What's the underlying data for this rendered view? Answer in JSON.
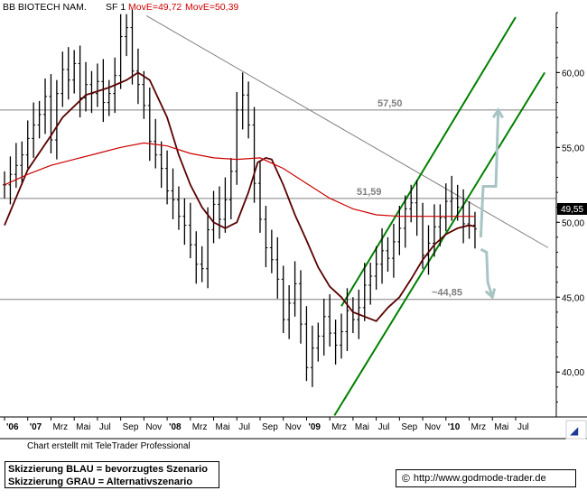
{
  "header": {
    "instrument": "BB BIOTECH NAM.",
    "sf_label": "SF 1",
    "move1": "MovE=49,72",
    "move2": "MovE=50,39"
  },
  "price_tag": "49,55",
  "footer": {
    "credit": "Chart erstellt mit TeleTrader Professional",
    "legend_line1": "Skizzierung BLAU = bevorzugtes Szenario",
    "legend_line2": "Skizzierung GRAU = Alternativszenario",
    "copyright_symbol": "©",
    "source": "http://www.godmode-trader.de"
  },
  "colors": {
    "price_bars": "#000000",
    "ma_short": "#5a0000",
    "ma_long": "#cc0000",
    "channel": "#008000",
    "levels": "#808080",
    "scenario_arrows": "#a9c4c4",
    "header_red": "#d00000"
  },
  "chart_data": {
    "type": "line",
    "series_kind": "ohlc-bars",
    "ylim": [
      37,
      64
    ],
    "yticks": [
      40,
      45,
      50,
      55,
      60
    ],
    "ytick_labels": [
      "40,00",
      "45,00",
      "50,00",
      "55,00",
      "60,00"
    ],
    "x_labels": [
      "'06",
      "'07",
      "Mrz",
      "Mai",
      "Jul",
      "Sep",
      "Nov",
      "'08",
      "Mrz",
      "Mai",
      "Jul",
      "Sep",
      "Nov",
      "'09",
      "Mrz",
      "Mai",
      "Jul",
      "Sep",
      "Nov",
      "'10",
      "Mrz",
      "Mai",
      "Jul"
    ],
    "x_label_positions": [
      0,
      2,
      4,
      6,
      8,
      10,
      12,
      14,
      16,
      18,
      20,
      22,
      24,
      26,
      28,
      30,
      32,
      34,
      36,
      38,
      40,
      42,
      44
    ],
    "x_range": [
      0,
      47.5
    ],
    "series": [
      {
        "kind": "price",
        "x": [
          0,
          0.5,
          1,
          1.5,
          2,
          2.5,
          3,
          3.5,
          4,
          4.5,
          5,
          5.5,
          6,
          6.5,
          7,
          7.5,
          8,
          8.5,
          9,
          9.5,
          10,
          10.5,
          11,
          11.5,
          12,
          12.5,
          13,
          13.5,
          14,
          14.5,
          15,
          15.5,
          16,
          16.5,
          17,
          17.5,
          18,
          18.5,
          19,
          19.5,
          20,
          20.5,
          21,
          21.5,
          22,
          22.5,
          23,
          23.5,
          24,
          24.5,
          25,
          25.5,
          26,
          26.5,
          27,
          27.5,
          28,
          28.5,
          29,
          29.5,
          30,
          30.5,
          31,
          31.5,
          32,
          32.5,
          33,
          33.5,
          34,
          34.5,
          35,
          35.5,
          36,
          36.5,
          37,
          37.5,
          38,
          38.5,
          39,
          39.5,
          40,
          40.5
        ],
        "y": [
          52.5,
          53.2,
          53.8,
          54.5,
          55.6,
          56.5,
          57.2,
          58.4,
          55.5,
          58.6,
          60.2,
          59.5,
          60.6,
          58.3,
          59.2,
          58.6,
          59.4,
          58.0,
          58.6,
          59.8,
          62.4,
          63.0,
          60.1,
          59.2,
          57.8,
          55.4,
          54.5,
          53.6,
          52.1,
          51.5,
          50.4,
          49.8,
          48.5,
          47.2,
          46.9,
          49.5,
          51.2,
          50.2,
          51.5,
          53.4,
          57.5,
          58.5,
          56.5,
          52.6,
          50.2,
          48.3,
          47.5,
          46.2,
          43.5,
          44.6,
          45.9,
          43.2,
          40.3,
          41.6,
          42.4,
          43.7,
          42.6,
          41.8,
          42.7,
          44.1,
          43.5,
          44.3,
          45.8,
          46.4,
          47.2,
          48.1,
          47.6,
          48.7,
          49.6,
          50.9,
          51.3,
          50.4,
          47.8,
          48.6,
          49.7,
          50.3,
          51.4,
          51.6,
          51.0,
          49.9,
          49.8,
          49.55
        ]
      },
      {
        "name": "MovE=49,72",
        "kind": "ma-short",
        "x": [
          0,
          2,
          4,
          5,
          7,
          9,
          10.5,
          11.5,
          12.5,
          14,
          15,
          16,
          17,
          18,
          19,
          20,
          21,
          21.8,
          22.5,
          23,
          24,
          25,
          26,
          27,
          28,
          29,
          30,
          31,
          32,
          33,
          34,
          35,
          36,
          37,
          38,
          39,
          40,
          40.5
        ],
        "y": [
          49.8,
          53.5,
          55.8,
          57.0,
          58.5,
          59.0,
          59.5,
          60.0,
          59.5,
          57.0,
          54.5,
          52.5,
          51.0,
          50.0,
          49.6,
          50.0,
          52.0,
          54.0,
          54.3,
          54.2,
          52.5,
          50.5,
          48.8,
          47.0,
          45.7,
          45.0,
          44.0,
          43.7,
          43.4,
          44.3,
          45.0,
          46.2,
          47.5,
          48.5,
          49.2,
          49.6,
          49.8,
          49.72
        ]
      },
      {
        "name": "MovE=50,39",
        "kind": "ma-long",
        "x": [
          0,
          2,
          4,
          6,
          8,
          10,
          12,
          14,
          16,
          18,
          20,
          22,
          24,
          26,
          28,
          30,
          32,
          34,
          36,
          38,
          40,
          40.5
        ],
        "y": [
          52.5,
          53.2,
          53.8,
          54.2,
          54.6,
          55.0,
          55.3,
          55.1,
          54.6,
          54.3,
          54.2,
          54.3,
          53.6,
          52.6,
          51.6,
          50.9,
          50.5,
          50.4,
          50.4,
          50.4,
          50.4,
          50.39
        ]
      }
    ],
    "trendlines": [
      {
        "kind": "downtrend",
        "from": [
          12.2,
          63.8
        ],
        "to": [
          46.8,
          48.3
        ]
      },
      {
        "kind": "channel-upper",
        "from": [
          29.0,
          44.4
        ],
        "to": [
          44.0,
          63.7
        ]
      },
      {
        "kind": "channel-lower",
        "from": [
          28.4,
          37.1
        ],
        "to": [
          46.5,
          60.0
        ]
      }
    ],
    "levels": [
      {
        "value": 57.5,
        "label": "57,50"
      },
      {
        "value": 51.59,
        "label": "51,59"
      },
      {
        "value": 44.85,
        "label": "~44,85"
      }
    ],
    "scenario_arrows": [
      {
        "kind": "up",
        "points": [
          [
            41.0,
            49.0
          ],
          [
            41.2,
            52.4
          ],
          [
            42.3,
            52.4
          ],
          [
            42.5,
            57.5
          ]
        ]
      },
      {
        "kind": "down",
        "points": [
          [
            41.0,
            48.2
          ],
          [
            41.5,
            48.0
          ],
          [
            41.6,
            46.0
          ],
          [
            42.0,
            45.0
          ]
        ]
      }
    ]
  }
}
